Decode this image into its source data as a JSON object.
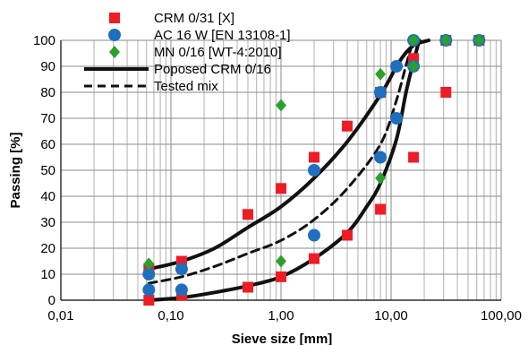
{
  "chart_data": {
    "type": "scatter",
    "title": "",
    "xlabel": "Sieve size [mm]",
    "ylabel": "Passing [%]",
    "x_scale": "log",
    "xlim": [
      0.01,
      100
    ],
    "ylim": [
      0,
      100
    ],
    "x_ticks": [
      "0,01",
      "0,10",
      "1,00",
      "10,00",
      "100,00"
    ],
    "y_ticks": [
      "0",
      "10",
      "20",
      "30",
      "40",
      "50",
      "60",
      "70",
      "80",
      "90",
      "100"
    ],
    "grid": true,
    "legend_position": "top-left",
    "series": [
      {
        "name": "CRM 0/31 [X]",
        "kind": "marker",
        "marker": "square",
        "color": "#ee1c25",
        "points": [
          [
            0.063,
            0
          ],
          [
            0.125,
            2
          ],
          [
            0.5,
            5
          ],
          [
            1,
            9
          ],
          [
            2,
            16
          ],
          [
            4,
            25
          ],
          [
            8,
            35
          ],
          [
            16,
            55
          ],
          [
            31.5,
            80
          ],
          [
            63,
            100
          ],
          [
            0.063,
            12
          ],
          [
            0.125,
            15
          ],
          [
            0.5,
            33
          ],
          [
            1,
            43
          ],
          [
            2,
            55
          ],
          [
            4,
            67
          ],
          [
            8,
            80
          ],
          [
            16,
            93
          ],
          [
            31.5,
            100
          ]
        ]
      },
      {
        "name": "AC 16 W [EN 13108-1]",
        "kind": "marker",
        "marker": "circle",
        "color": "#1f6fbf",
        "points": [
          [
            0.063,
            4
          ],
          [
            0.125,
            4
          ],
          [
            2,
            25
          ],
          [
            8,
            55
          ],
          [
            11.2,
            70
          ],
          [
            16,
            90
          ],
          [
            0.063,
            10
          ],
          [
            0.125,
            12
          ],
          [
            2,
            50
          ],
          [
            8,
            80
          ],
          [
            11.2,
            90
          ],
          [
            16,
            100
          ],
          [
            31.5,
            100
          ],
          [
            63,
            100
          ]
        ]
      },
      {
        "name": "MN 0/16 [WT-4:2010]",
        "kind": "marker",
        "marker": "diamond",
        "color": "#2ca02c",
        "points": [
          [
            0.063,
            14
          ],
          [
            1,
            75
          ],
          [
            1,
            15
          ],
          [
            8,
            87
          ],
          [
            8,
            47
          ],
          [
            16,
            90
          ],
          [
            16,
            100
          ],
          [
            31.5,
            100
          ],
          [
            63,
            100
          ]
        ]
      },
      {
        "name": "Poposed CRM 0/16",
        "kind": "line",
        "style": "solid",
        "color": "#111111",
        "curves": [
          [
            [
              0.063,
              0
            ],
            [
              0.125,
              1
            ],
            [
              0.25,
              3
            ],
            [
              0.5,
              5.5
            ],
            [
              1,
              9
            ],
            [
              2,
              16
            ],
            [
              4,
              26
            ],
            [
              6,
              36
            ],
            [
              8,
              45
            ],
            [
              11.2,
              62
            ],
            [
              14,
              82
            ],
            [
              18,
              100
            ]
          ],
          [
            [
              0.063,
              12
            ],
            [
              0.125,
              15
            ],
            [
              0.25,
              20
            ],
            [
              0.5,
              28
            ],
            [
              1,
              36
            ],
            [
              2,
              47
            ],
            [
              4,
              61
            ],
            [
              8,
              79
            ],
            [
              12,
              92
            ],
            [
              16,
              98
            ],
            [
              22,
              100
            ]
          ]
        ]
      },
      {
        "name": "Tested mix",
        "kind": "line",
        "style": "dashed",
        "color": "#111111",
        "curves": [
          [
            [
              0.063,
              6.5
            ],
            [
              0.125,
              9
            ],
            [
              0.25,
              13
            ],
            [
              0.5,
              18
            ],
            [
              1,
              23
            ],
            [
              2,
              31
            ],
            [
              4,
              43
            ],
            [
              8,
              60
            ],
            [
              11.2,
              77
            ],
            [
              14,
              92
            ],
            [
              16,
              100
            ]
          ]
        ]
      }
    ]
  }
}
